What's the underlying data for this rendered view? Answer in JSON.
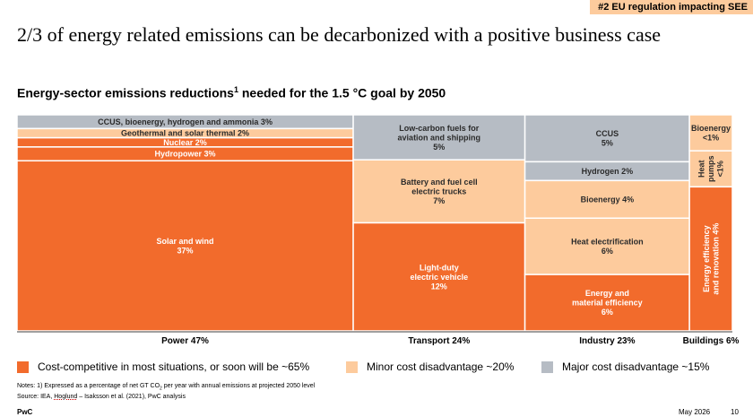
{
  "tag": "#2 EU regulation impacting SEE",
  "title": "2/3 of energy related emissions can be decarbonized with a positive business case",
  "subtitle": {
    "text": "Energy-sector emissions reductions",
    "sup": "1",
    "rest": " needed for the 1.5 °C goal by 2050"
  },
  "colors": {
    "green": "#F26B2C",
    "amber": "#FDCB9D",
    "gray": "#B6BCC4"
  },
  "chart_data": {
    "type": "marimekko",
    "unit": "% of net GT CO2 per year",
    "columns": [
      {
        "name": "Power 47%",
        "share": 47,
        "segments": [
          {
            "label": "CCUS, bioenergy, hydrogen and ammonia 3%",
            "value": 3,
            "category": "gray"
          },
          {
            "label": "Geothermal and solar thermal 2%",
            "value": 2,
            "category": "amber"
          },
          {
            "label": "Nuclear 2%",
            "value": 2,
            "category": "green"
          },
          {
            "label": "Hydropower 3%",
            "value": 3,
            "category": "green"
          },
          {
            "label": "Solar and wind\n37%",
            "value": 37,
            "category": "green"
          }
        ]
      },
      {
        "name": "Transport 24%",
        "share": 24,
        "segments": [
          {
            "label": "Low-carbon fuels for\naviation and shipping\n5%",
            "value": 5,
            "category": "gray"
          },
          {
            "label": "Battery and fuel cell\nelectric trucks\n7%",
            "value": 7,
            "category": "amber"
          },
          {
            "label": "Light-duty\nelectric vehicle\n12%",
            "value": 12,
            "category": "green"
          }
        ]
      },
      {
        "name": "Industry 23%",
        "share": 23,
        "segments": [
          {
            "label": "CCUS\n5%",
            "value": 5,
            "category": "gray"
          },
          {
            "label": "Hydrogen 2%",
            "value": 2,
            "category": "gray"
          },
          {
            "label": "Bioenergy 4%",
            "value": 4,
            "category": "amber"
          },
          {
            "label": "Heat electrification\n6%",
            "value": 6,
            "category": "amber"
          },
          {
            "label": "Energy and\nmaterial efficiency\n6%",
            "value": 6,
            "category": "green"
          }
        ]
      },
      {
        "name": "Buildings 6%",
        "share": 6,
        "segments": [
          {
            "label": "Bioenergy\n<1%",
            "value": 1,
            "category": "amber"
          },
          {
            "label": "Heat\npumps\n<1%",
            "value": 1,
            "category": "amber"
          },
          {
            "label": "Energy efficiency\nand renovation 4%",
            "value": 4,
            "category": "green"
          }
        ]
      }
    ],
    "legend": [
      {
        "label": "Cost-competitive in most situations, or soon will be ~65%",
        "category": "green"
      },
      {
        "label": "Minor cost disadvantage ~20%",
        "category": "amber"
      },
      {
        "label": "Major cost disadvantage ~15%",
        "category": "gray"
      }
    ]
  },
  "notes": {
    "line1_a": "Notes: 1) Expressed as a percentage of net GT CO",
    "line1_sub": "2",
    "line1_b": " per year with annual emissions at projected 2050 level",
    "source_a": "Source: IEA, ",
    "source_name": "Hoglund",
    "source_b": " – Isaksson et  al. (2021), PwC analysis"
  },
  "footer": {
    "brand": "PwC",
    "date": "May 2026",
    "page": "10"
  }
}
